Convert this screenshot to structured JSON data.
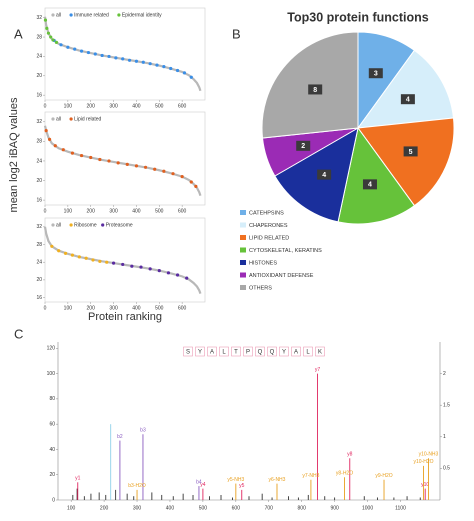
{
  "chart_data": [
    {
      "type": "scatter",
      "label": "A",
      "ylabel": "mean log2 iBAQ values",
      "xlim": [
        0,
        700
      ],
      "ylim": [
        15,
        34
      ],
      "xticks": [
        0,
        100,
        200,
        300,
        400,
        500,
        600
      ],
      "yticks": [
        16,
        20,
        24,
        28,
        32
      ],
      "series": [
        {
          "name": "all",
          "color": "#b8b8b8",
          "line": true,
          "x": [
            0,
            5,
            15,
            30,
            60,
            100,
            150,
            200,
            250,
            300,
            350,
            400,
            450,
            500,
            550,
            600,
            630,
            650,
            665,
            675,
            680
          ],
          "values": [
            32.2,
            30.5,
            28.8,
            27.6,
            26.6,
            25.9,
            25.2,
            24.7,
            24.2,
            23.8,
            23.4,
            23.0,
            22.6,
            22.1,
            21.5,
            20.8,
            20.1,
            19.3,
            18.5,
            17.6,
            16.9
          ]
        },
        {
          "name": "Immune related",
          "color": "#3a8ee6",
          "x": [
            40,
            70,
            100,
            130,
            160,
            190,
            220,
            250,
            280,
            310,
            340,
            370,
            400,
            430,
            460,
            490,
            520,
            550,
            580,
            610,
            640
          ],
          "values": [
            27.3,
            26.4,
            25.9,
            25.5,
            25.1,
            24.8,
            24.5,
            24.2,
            24.0,
            23.7,
            23.5,
            23.2,
            23.0,
            22.8,
            22.5,
            22.2,
            21.9,
            21.5,
            21.1,
            20.6,
            19.7
          ]
        },
        {
          "name": "Epidermal identity",
          "color": "#66c23a",
          "x": [
            2,
            8,
            15,
            25,
            35,
            50
          ],
          "values": [
            31.5,
            29.8,
            28.8,
            28.0,
            27.4,
            26.9
          ]
        }
      ]
    },
    {
      "type": "scatter",
      "xlim": [
        0,
        700
      ],
      "ylim": [
        15,
        34
      ],
      "xticks": [
        0,
        100,
        200,
        300,
        400,
        500,
        600
      ],
      "yticks": [
        16,
        20,
        24,
        28,
        32
      ],
      "series": [
        {
          "name": "all",
          "color": "#b8b8b8",
          "line": true,
          "x": [
            0,
            5,
            15,
            30,
            60,
            100,
            150,
            200,
            250,
            300,
            350,
            400,
            450,
            500,
            550,
            600,
            630,
            650,
            665,
            675,
            680
          ],
          "values": [
            31.2,
            30.2,
            28.8,
            27.6,
            26.6,
            25.9,
            25.2,
            24.7,
            24.2,
            23.8,
            23.4,
            23.0,
            22.6,
            22.1,
            21.5,
            20.8,
            20.1,
            19.3,
            18.5,
            17.6,
            16.9
          ]
        },
        {
          "name": "Lipid related",
          "color": "#e06020",
          "x": [
            5,
            20,
            45,
            80,
            120,
            160,
            200,
            240,
            280,
            320,
            360,
            400,
            440,
            480,
            520,
            560,
            600,
            640,
            660
          ],
          "values": [
            30.2,
            28.4,
            27.1,
            26.3,
            25.6,
            25.1,
            24.7,
            24.3,
            24.0,
            23.6,
            23.3,
            23.0,
            22.7,
            22.3,
            21.9,
            21.4,
            20.8,
            19.7,
            18.8
          ]
        }
      ]
    },
    {
      "type": "scatter",
      "xlabel": "Protein ranking",
      "xlim": [
        0,
        700
      ],
      "ylim": [
        15,
        34
      ],
      "xticks": [
        0,
        100,
        200,
        300,
        400,
        500,
        600
      ],
      "yticks": [
        16,
        20,
        24,
        28,
        32
      ],
      "series": [
        {
          "name": "all",
          "color": "#b8b8b8",
          "line": true,
          "x": [
            0,
            5,
            15,
            30,
            60,
            100,
            150,
            200,
            250,
            300,
            350,
            400,
            450,
            500,
            550,
            600,
            630,
            650,
            665,
            675,
            680
          ],
          "values": [
            32.0,
            30.5,
            28.8,
            27.6,
            26.6,
            25.9,
            25.2,
            24.7,
            24.2,
            23.8,
            23.4,
            23.0,
            22.6,
            22.1,
            21.5,
            20.8,
            20.1,
            19.3,
            18.5,
            17.6,
            16.9
          ]
        },
        {
          "name": "Ribosome",
          "color": "#f0b020",
          "x": [
            30,
            60,
            90,
            120,
            150,
            180,
            210,
            240,
            270
          ],
          "values": [
            27.6,
            26.6,
            26.0,
            25.6,
            25.2,
            24.9,
            24.5,
            24.2,
            24.0
          ]
        },
        {
          "name": "Proteasome",
          "color": "#5a2ca0",
          "x": [
            300,
            340,
            380,
            420,
            460,
            500,
            540,
            580,
            620
          ],
          "values": [
            23.8,
            23.5,
            23.1,
            22.9,
            22.5,
            22.1,
            21.6,
            21.1,
            20.4
          ]
        }
      ]
    },
    {
      "type": "pie",
      "label": "B",
      "title": "Top30 protein functions",
      "categories": [
        "CATEHPSINS",
        "CHAPERONES",
        "LIPID RELATED",
        "CYTOSKELETAL, KERATINS",
        "HISTONES",
        "ANTIOXIDANT DEFENSE",
        "OTHERS"
      ],
      "values": [
        3,
        4,
        5,
        4,
        4,
        2,
        8
      ],
      "colors": [
        "#6fb0e8",
        "#d6eefa",
        "#f07020",
        "#66c23a",
        "#1a2f9c",
        "#9b2bb5",
        "#a8a8a8"
      ]
    },
    {
      "type": "bar",
      "label": "C",
      "sequence": [
        "S",
        "Y",
        "A",
        "L",
        "T",
        "P",
        "Q",
        "Q",
        "Y",
        "A",
        "L",
        "K"
      ],
      "xlim": [
        60,
        1220
      ],
      "ylim": [
        0,
        125
      ],
      "y2lim": [
        0,
        2.5
      ],
      "xticks": [
        100,
        200,
        300,
        400,
        500,
        600,
        700,
        800,
        900,
        1000,
        1100
      ],
      "yticks": [
        0,
        20,
        40,
        60,
        80,
        100,
        120
      ],
      "y2ticks": [
        0.5,
        1,
        1.5,
        2
      ],
      "series": [
        {
          "color": "#333333",
          "x": [
            105,
            118,
            140,
            160,
            185,
            205,
            235,
            270,
            290,
            345,
            375,
            410,
            440,
            470,
            520,
            555,
            590,
            640,
            680,
            710,
            760,
            790,
            820,
            870,
            900,
            990,
            1030,
            1080,
            1120,
            1160
          ],
          "values": [
            4,
            9,
            3,
            5,
            6,
            4,
            8,
            5,
            3,
            6,
            4,
            3,
            5,
            4,
            3,
            4,
            2,
            3,
            5,
            2,
            3,
            2,
            4,
            3,
            2,
            3,
            2,
            2,
            3,
            2
          ]
        },
        {
          "color": "#8fd0e8",
          "x": [
            220
          ],
          "values": [
            60
          ]
        },
        {
          "color": "#e0245e",
          "x": [
            120,
            500,
            618,
            848,
            946,
            1175
          ],
          "values": [
            14,
            9,
            8,
            100,
            33,
            9
          ],
          "peak_labels": [
            "y1",
            "y4",
            "y5",
            "y7",
            "y8",
            "y10"
          ]
        },
        {
          "color": "#8a5cc0",
          "x": [
            248,
            318,
            488
          ],
          "values": [
            47,
            52,
            11
          ],
          "peak_labels": [
            "b2",
            "b3",
            "b4"
          ]
        },
        {
          "color": "#e8a020",
          "x": [
            300,
            600,
            725,
            828,
            930,
            1050,
            1170,
            1185
          ],
          "values": [
            8,
            13,
            13,
            16,
            18,
            16,
            27,
            33
          ],
          "peak_labels": [
            "b3-H2O",
            "y5-NH3",
            "y6-NH3",
            "y7-NH3",
            "y8-H2O",
            "y9-H2O",
            "y10-H2O",
            "y10-NH3"
          ]
        }
      ]
    }
  ]
}
